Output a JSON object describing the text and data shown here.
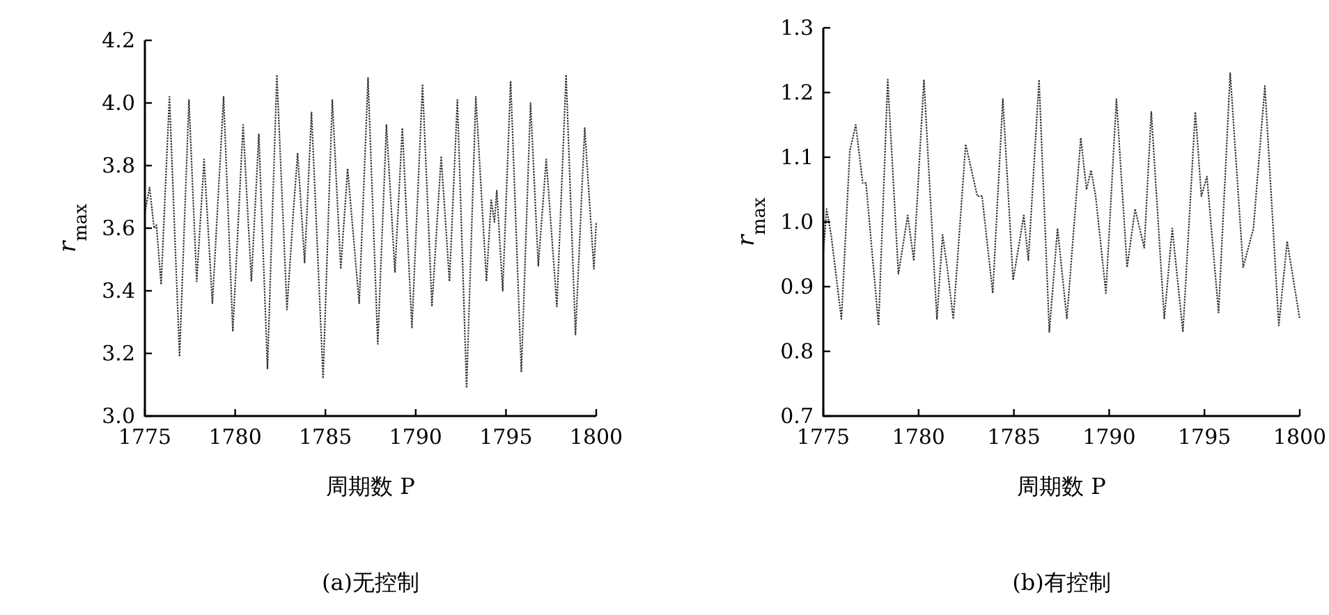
{
  "chart_data": [
    {
      "type": "line",
      "title": "(a)无控制",
      "xlabel": "周期数 P",
      "ylabel": "r$_{max}$",
      "xlim": [
        1775,
        1800
      ],
      "xticks": [
        1775,
        1780,
        1785,
        1790,
        1795,
        1800
      ],
      "ylim": [
        3.0,
        4.2
      ],
      "yticks": [
        {
          "value": 3.0,
          "label": "3.0"
        },
        {
          "value": 3.2,
          "label": "3.2"
        },
        {
          "value": 3.4,
          "label": "3.4"
        },
        {
          "value": 3.6,
          "label": "3.6"
        },
        {
          "value": 3.8,
          "label": "3.8"
        },
        {
          "value": 4.0,
          "label": "4.0"
        },
        {
          "value": 4.2,
          "label": "4.2"
        }
      ],
      "line_style": "dotted",
      "series": [
        {
          "color": "#333333",
          "x": [
            1775.0,
            1775.26,
            1775.51,
            1775.64,
            1775.9,
            1776.36,
            1776.92,
            1777.44,
            1777.87,
            1778.28,
            1778.74,
            1779.36,
            1779.87,
            1780.44,
            1780.9,
            1781.31,
            1781.79,
            1782.31,
            1782.87,
            1783.21,
            1783.46,
            1783.85,
            1784.23,
            1784.87,
            1785.38,
            1785.85,
            1786.23,
            1786.87,
            1787.36,
            1787.9,
            1788.38,
            1788.85,
            1789.26,
            1789.79,
            1790.38,
            1790.9,
            1791.41,
            1791.87,
            1792.31,
            1792.82,
            1793.33,
            1793.92,
            1794.18,
            1794.36,
            1794.49,
            1794.82,
            1795.26,
            1795.85,
            1796.36,
            1796.79,
            1797.23,
            1797.82,
            1798.33,
            1798.85,
            1799.36,
            1799.87,
            1800.0
          ],
          "values": [
            3.65,
            3.73,
            3.6,
            3.61,
            3.42,
            4.02,
            3.19,
            4.01,
            3.43,
            3.82,
            3.36,
            4.02,
            3.27,
            3.93,
            3.43,
            3.9,
            3.15,
            4.09,
            3.34,
            3.64,
            3.84,
            3.49,
            3.97,
            3.12,
            4.01,
            3.47,
            3.79,
            3.36,
            4.08,
            3.23,
            3.93,
            3.46,
            3.92,
            3.28,
            4.06,
            3.35,
            3.83,
            3.43,
            4.01,
            3.09,
            4.02,
            3.43,
            3.69,
            3.62,
            3.72,
            3.4,
            4.07,
            3.14,
            4.0,
            3.48,
            3.82,
            3.35,
            4.09,
            3.26,
            3.92,
            3.47,
            3.62
          ]
        }
      ]
    },
    {
      "type": "line",
      "title": "(b)有控制",
      "xlabel": "周期数 P",
      "ylabel": "r$_{max}$",
      "xlim": [
        1775,
        1800
      ],
      "xticks": [
        1775,
        1780,
        1785,
        1790,
        1795,
        1800
      ],
      "ylim": [
        0.7,
        1.3
      ],
      "yticks": [
        {
          "value": 0.7,
          "label": "0.7"
        },
        {
          "value": 0.8,
          "label": "0.8"
        },
        {
          "value": 0.9,
          "label": "0.9"
        },
        {
          "value": 1.0,
          "label": "1.0"
        },
        {
          "value": 1.1,
          "label": "1.1"
        },
        {
          "value": 1.2,
          "label": "1.2"
        },
        {
          "value": 1.3,
          "label": "1.3"
        }
      ],
      "line_style": "dotted",
      "series": [
        {
          "color": "#333333",
          "x": [
            1775.0,
            1775.17,
            1775.41,
            1775.95,
            1776.39,
            1776.7,
            1777.07,
            1777.24,
            1777.9,
            1778.38,
            1778.94,
            1779.43,
            1779.75,
            1780.28,
            1780.96,
            1781.26,
            1781.5,
            1781.82,
            1782.47,
            1783.08,
            1783.33,
            1783.89,
            1784.42,
            1784.96,
            1785.52,
            1785.76,
            1786.32,
            1786.86,
            1787.29,
            1787.78,
            1788.51,
            1788.81,
            1789.05,
            1789.29,
            1789.83,
            1790.38,
            1790.94,
            1791.36,
            1791.84,
            1792.21,
            1792.89,
            1793.31,
            1793.87,
            1794.52,
            1794.84,
            1795.13,
            1795.74,
            1796.35,
            1797.03,
            1797.57,
            1798.17,
            1798.9,
            1799.34,
            1800.0
          ],
          "values": [
            0.95,
            1.02,
            0.98,
            0.85,
            1.11,
            1.15,
            1.06,
            1.06,
            0.84,
            1.22,
            0.92,
            1.01,
            0.94,
            1.22,
            0.85,
            0.98,
            0.93,
            0.85,
            1.12,
            1.04,
            1.04,
            0.89,
            1.19,
            0.91,
            1.01,
            0.94,
            1.22,
            0.83,
            0.99,
            0.85,
            1.13,
            1.05,
            1.08,
            1.04,
            0.89,
            1.19,
            0.93,
            1.02,
            0.96,
            1.17,
            0.85,
            0.99,
            0.83,
            1.17,
            1.04,
            1.07,
            0.86,
            1.23,
            0.93,
            0.99,
            1.21,
            0.84,
            0.97,
            0.85
          ]
        }
      ]
    }
  ]
}
